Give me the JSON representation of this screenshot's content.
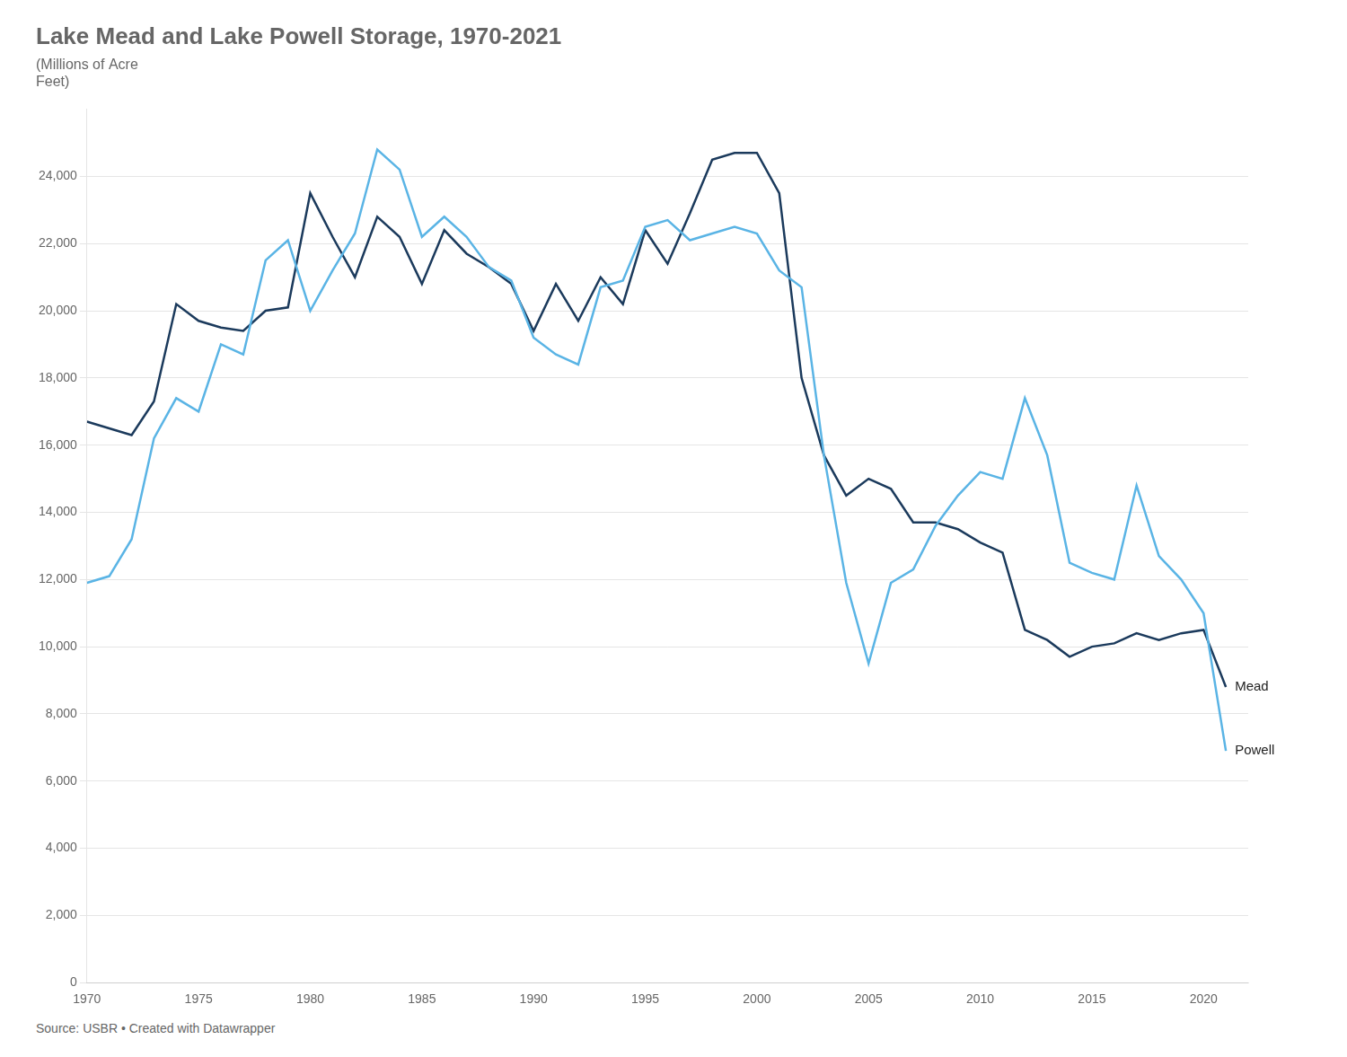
{
  "chart_data": {
    "type": "line",
    "title": "Lake Mead and Lake Powell Storage, 1970-2021",
    "subtitle": "(Millions of Acre\nFeet)",
    "source": "Source: USBR • Created with Datawrapper",
    "xlim": [
      1970,
      2022
    ],
    "xticks": [
      1970,
      1975,
      1980,
      1985,
      1990,
      1995,
      2000,
      2005,
      2010,
      2015,
      2020
    ],
    "ylim": [
      0,
      26000
    ],
    "yticks": [
      0,
      {
        "value": 2000,
        "label": "2,000"
      },
      {
        "value": 4000,
        "label": "4,000"
      },
      {
        "value": 6000,
        "label": "6,000"
      },
      {
        "value": 8000,
        "label": "8,000"
      },
      {
        "value": 10000,
        "label": "10,000"
      },
      {
        "value": 12000,
        "label": "12,000"
      },
      {
        "value": 14000,
        "label": "14,000"
      },
      {
        "value": 16000,
        "label": "16,000"
      },
      {
        "value": 18000,
        "label": "18,000"
      },
      {
        "value": 20000,
        "label": "20,000"
      },
      {
        "value": 22000,
        "label": "22,000"
      },
      {
        "value": 24000,
        "label": "24,000"
      }
    ],
    "grid": true,
    "series": [
      {
        "name": "Powell",
        "color": "#5ab4e5",
        "x": [
          1970,
          1971,
          1972,
          1973,
          1974,
          1975,
          1976,
          1977,
          1978,
          1979,
          1980,
          1981,
          1982,
          1983,
          1984,
          1985,
          1986,
          1987,
          1988,
          1989,
          1990,
          1991,
          1992,
          1993,
          1994,
          1995,
          1996,
          1997,
          1998,
          1999,
          2000,
          2001,
          2002,
          2003,
          2004,
          2005,
          2006,
          2007,
          2008,
          2009,
          2010,
          2011,
          2012,
          2013,
          2014,
          2015,
          2016,
          2017,
          2018,
          2019,
          2020,
          2021
        ],
        "values": [
          11900,
          12100,
          13200,
          16200,
          17400,
          17000,
          19000,
          18700,
          21500,
          22100,
          20000,
          21200,
          22300,
          24800,
          24200,
          22200,
          22800,
          22200,
          21300,
          20900,
          19200,
          18700,
          18400,
          20700,
          20900,
          22500,
          22700,
          22100,
          22300,
          22500,
          22300,
          21200,
          20700,
          15700,
          11900,
          9500,
          11900,
          12300,
          13600,
          14500,
          15200,
          15000,
          17400,
          15700,
          12500,
          12200,
          12000,
          14800,
          12700,
          12000,
          11000,
          6900
        ]
      },
      {
        "name": "Mead",
        "color": "#1b3a5c",
        "x": [
          1970,
          1971,
          1972,
          1973,
          1974,
          1975,
          1976,
          1977,
          1978,
          1979,
          1980,
          1981,
          1982,
          1983,
          1984,
          1985,
          1986,
          1987,
          1988,
          1989,
          1990,
          1991,
          1992,
          1993,
          1994,
          1995,
          1996,
          1997,
          1998,
          1999,
          2000,
          2001,
          2002,
          2003,
          2004,
          2005,
          2006,
          2007,
          2008,
          2009,
          2010,
          2011,
          2012,
          2013,
          2014,
          2015,
          2016,
          2017,
          2018,
          2019,
          2020,
          2021
        ],
        "values": [
          16700,
          16500,
          16300,
          17300,
          20200,
          19700,
          19500,
          19400,
          20000,
          20100,
          23500,
          22200,
          21000,
          22800,
          22200,
          20800,
          22400,
          21700,
          21300,
          20800,
          19400,
          20800,
          19700,
          21000,
          20200,
          22400,
          21400,
          22900,
          24500,
          24700,
          24700,
          23500,
          18000,
          15700,
          14500,
          15000,
          14700,
          13700,
          13700,
          13500,
          13100,
          12800,
          10500,
          10200,
          9700,
          10000,
          10100,
          10400,
          10200,
          10400,
          10500,
          8800
        ]
      }
    ],
    "annotations": [
      {
        "text": "Mead",
        "x": 2021,
        "y": 8800
      },
      {
        "text": "Powell",
        "x": 2021,
        "y": 6900
      }
    ]
  }
}
